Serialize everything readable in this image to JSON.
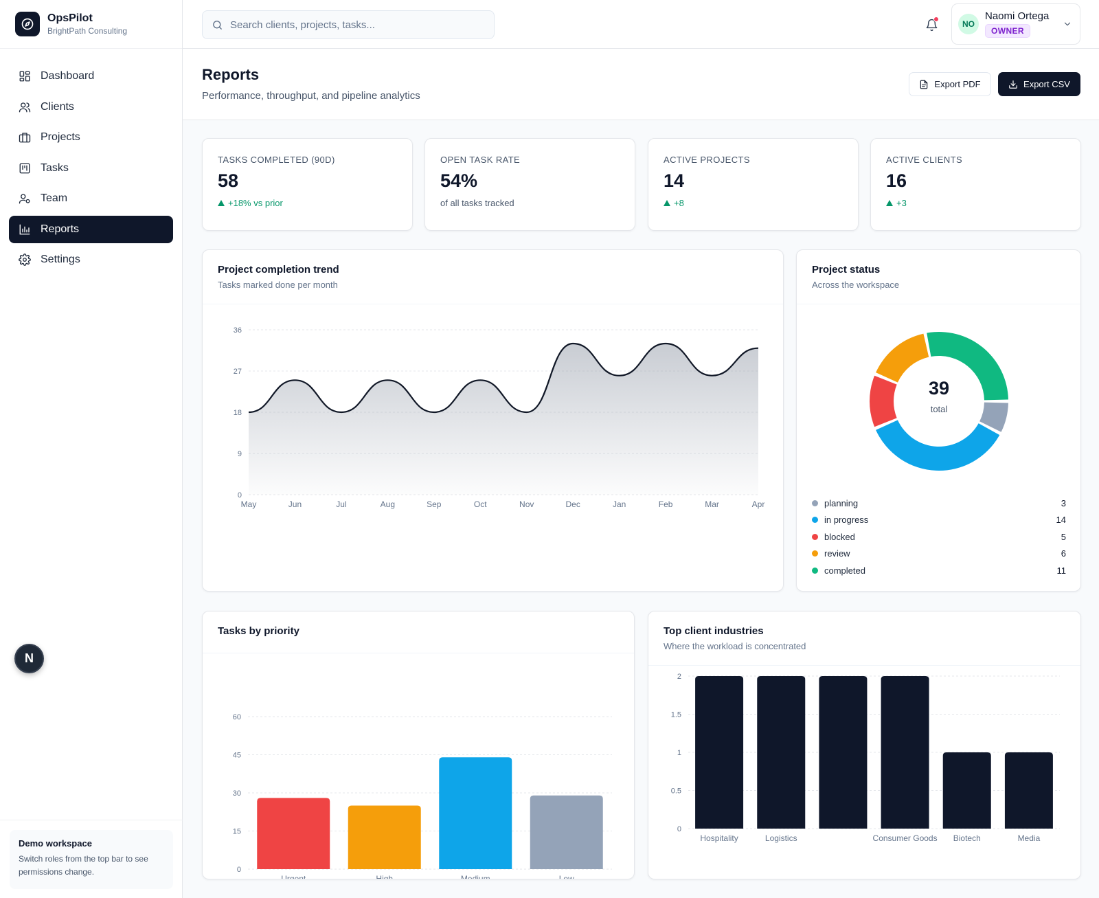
{
  "brand": {
    "name": "OpsPilot",
    "org": "BrightPath Consulting"
  },
  "sidebar": {
    "items": [
      {
        "label": "Dashboard",
        "icon": "grid-icon"
      },
      {
        "label": "Clients",
        "icon": "users-icon"
      },
      {
        "label": "Projects",
        "icon": "briefcase-icon"
      },
      {
        "label": "Tasks",
        "icon": "kanban-icon"
      },
      {
        "label": "Team",
        "icon": "user-cog-icon"
      },
      {
        "label": "Reports",
        "icon": "bar-chart-icon",
        "active": true
      },
      {
        "label": "Settings",
        "icon": "gear-icon"
      }
    ],
    "fab_label": "N",
    "demo": {
      "title": "Demo workspace",
      "text": "Switch roles from the top bar to see permissions change."
    }
  },
  "search": {
    "placeholder": "Search clients, projects, tasks...",
    "value": ""
  },
  "user": {
    "initials": "NO",
    "name": "Naomi Ortega",
    "role": "OWNER"
  },
  "page": {
    "title": "Reports",
    "subtitle": "Performance, throughput, and pipeline analytics",
    "export_pdf": "Export PDF",
    "export_csv": "Export CSV"
  },
  "kpis": [
    {
      "label": "TASKS COMPLETED (90D)",
      "value": "58",
      "delta": "+18% vs prior",
      "trend": "up"
    },
    {
      "label": "OPEN TASK RATE",
      "value": "54%",
      "delta": "of all tasks tracked",
      "trend": "none"
    },
    {
      "label": "ACTIVE PROJECTS",
      "value": "14",
      "delta": "+8",
      "trend": "up"
    },
    {
      "label": "ACTIVE CLIENTS",
      "value": "16",
      "delta": "+3",
      "trend": "up"
    }
  ],
  "panels": {
    "trend": {
      "title": "Project completion trend",
      "subtitle": "Tasks marked done per month"
    },
    "status": {
      "title": "Project status",
      "subtitle": "Across the workspace",
      "total": "39",
      "total_label": "total"
    },
    "priority": {
      "title": "Tasks by priority"
    },
    "industries": {
      "title": "Top client industries",
      "subtitle": "Where the workload is concentrated"
    }
  },
  "colors": {
    "sidebar_active": "#0f172a",
    "success": "#059669",
    "planning": "#94a3b8",
    "in_progress": "#0ea5e9",
    "blocked": "#ef4444",
    "review": "#f59e0b",
    "completed": "#10b981",
    "line": "#111827",
    "bar_dark": "#0f172a"
  },
  "chart_data": [
    {
      "type": "area",
      "title": "Project completion trend",
      "categories": [
        "May",
        "Jun",
        "Jul",
        "Aug",
        "Sep",
        "Oct",
        "Nov",
        "Dec",
        "Jan",
        "Feb",
        "Mar",
        "Apr"
      ],
      "values": [
        18,
        25,
        18,
        25,
        18,
        25,
        18,
        33,
        26,
        33,
        26,
        32
      ],
      "ylim": [
        0,
        36
      ],
      "yticks": [
        "0",
        "9",
        "18",
        "27",
        "36"
      ],
      "grid": true
    },
    {
      "type": "pie",
      "title": "Project status",
      "categories": [
        "planning",
        "in progress",
        "blocked",
        "review",
        "completed"
      ],
      "values": [
        3,
        14,
        5,
        6,
        11
      ],
      "colors": [
        "#94a3b8",
        "#0ea5e9",
        "#ef4444",
        "#f59e0b",
        "#10b981"
      ]
    },
    {
      "type": "bar",
      "title": "Tasks by priority",
      "categories": [
        "Urgent",
        "High",
        "Medium",
        "Low"
      ],
      "values": [
        28,
        25,
        44,
        29
      ],
      "colors": [
        "#ef4444",
        "#f59e0b",
        "#0ea5e9",
        "#94a3b8"
      ],
      "ylim": [
        0,
        60
      ],
      "yticks": [
        "0",
        "15",
        "30",
        "45",
        "60"
      ],
      "grid": true
    },
    {
      "type": "bar",
      "title": "Top client industries",
      "categories": [
        "Hospitality",
        "Logistics",
        "",
        "Consumer Goods",
        "Biotech",
        "Media"
      ],
      "values": [
        2,
        2,
        2,
        2,
        1,
        1
      ],
      "ylim": [
        0,
        2
      ],
      "yticks": [
        "0",
        "0.5",
        "1",
        "1.5",
        "2"
      ],
      "grid": true
    }
  ]
}
